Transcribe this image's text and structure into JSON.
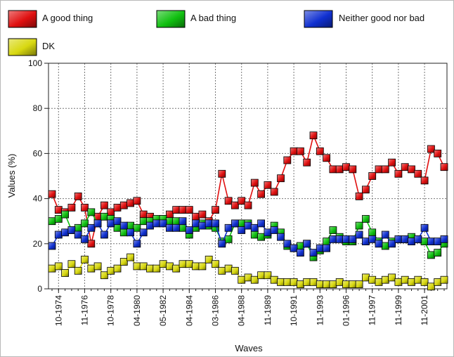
{
  "chart_data": {
    "type": "line",
    "xlabel": "Waves",
    "ylabel": "Values (%)",
    "ylim": [
      0,
      100
    ],
    "yticks": [
      0,
      20,
      40,
      60,
      80,
      100
    ],
    "grid": true,
    "legend_position": "top",
    "x_tick_labels": [
      "10-1974",
      "11-1976",
      "10-1978",
      "04-1980",
      "05-1982",
      "04-1984",
      "03-1986",
      "04-1988",
      "11-1989",
      "10-1991",
      "11-1993",
      "01-1996",
      "11-1997",
      "11-1999",
      "11-2001"
    ],
    "series": [
      {
        "name": "A good thing",
        "color": "#e01010",
        "values": [
          42,
          35,
          34,
          36,
          41,
          36,
          20,
          32,
          37,
          34,
          36,
          37,
          38,
          39,
          33,
          32,
          30,
          31,
          33,
          35,
          35,
          35,
          32,
          33,
          30,
          35,
          51,
          39,
          37,
          39,
          37,
          47,
          42,
          46,
          43,
          49,
          57,
          61,
          61,
          56,
          68,
          61,
          58,
          53,
          53,
          54,
          53,
          41,
          44,
          50,
          53,
          53,
          56,
          51,
          54,
          53,
          51,
          48,
          62,
          60,
          54
        ]
      },
      {
        "name": "A bad thing",
        "color": "#10c010",
        "values": [
          30,
          31,
          33,
          26,
          27,
          29,
          34,
          29,
          32,
          31,
          27,
          25,
          28,
          27,
          30,
          30,
          31,
          31,
          30,
          30,
          27,
          24,
          27,
          29,
          28,
          27,
          21,
          22,
          29,
          29,
          29,
          24,
          23,
          24,
          28,
          25,
          19,
          18,
          19,
          20,
          14,
          17,
          21,
          26,
          23,
          21,
          21,
          28,
          31,
          25,
          21,
          19,
          21,
          22,
          22,
          23,
          22,
          21,
          15,
          16,
          20
        ]
      },
      {
        "name": "Neither good nor bad",
        "color": "#1030d0",
        "values": [
          19,
          24,
          25,
          26,
          24,
          22,
          27,
          29,
          24,
          29,
          30,
          28,
          25,
          20,
          25,
          28,
          29,
          29,
          27,
          27,
          30,
          26,
          29,
          28,
          29,
          29,
          20,
          27,
          29,
          26,
          28,
          27,
          29,
          25,
          26,
          23,
          20,
          18,
          16,
          20,
          16,
          18,
          18,
          22,
          22,
          22,
          22,
          24,
          21,
          22,
          20,
          24,
          20,
          22,
          22,
          21,
          22,
          27,
          21,
          21,
          22
        ]
      },
      {
        "name": "DK",
        "color": "#d8d810",
        "values": [
          9,
          10,
          7,
          11,
          8,
          13,
          9,
          10,
          6,
          8,
          9,
          12,
          14,
          10,
          10,
          9,
          9,
          11,
          10,
          9,
          11,
          11,
          10,
          10,
          13,
          11,
          8,
          9,
          8,
          4,
          5,
          4,
          6,
          6,
          4,
          3,
          3,
          3,
          2,
          3,
          3,
          2,
          2,
          2,
          3,
          2,
          2,
          2,
          5,
          4,
          3,
          4,
          5,
          3,
          4,
          3,
          4,
          3,
          1,
          3,
          4
        ]
      }
    ]
  }
}
